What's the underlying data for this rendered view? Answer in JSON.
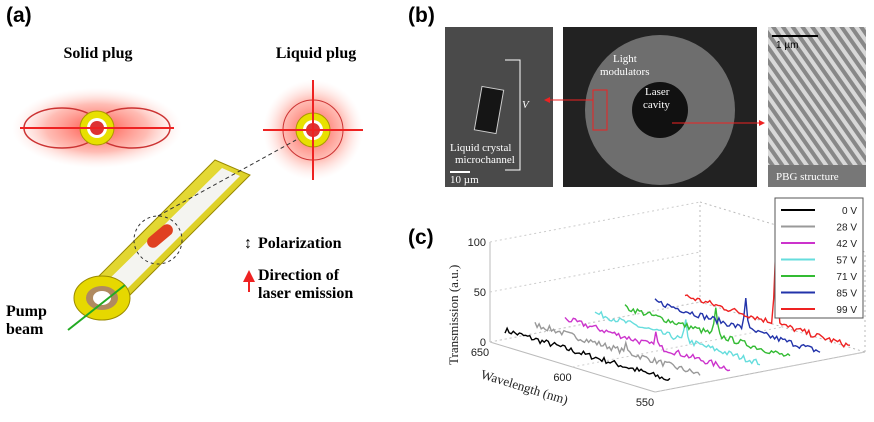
{
  "panel_a": {
    "label": "(a)",
    "solid_plug": "Solid plug",
    "liquid_plug": "Liquid plug",
    "polarization": "Polarization",
    "emission": [
      "Direction of",
      "laser emission"
    ],
    "pump": [
      "Pump",
      "beam"
    ]
  },
  "panel_b": {
    "label": "(b)",
    "light_modulators": [
      "Light",
      "modulators"
    ],
    "laser_cavity": [
      "Laser",
      "cavity"
    ],
    "voltage": "V",
    "microchannel": [
      "Liquid crystal",
      "microchannel"
    ],
    "scale_left": "10 µm",
    "scale_right": "1 µm",
    "pbg": "PBG  structure"
  },
  "panel_c": {
    "label": "(c)",
    "type": "waterfall",
    "z_label": "Transmission (a.u.)",
    "x_label": "Wavelength (nm)",
    "zlim": [
      0,
      100
    ],
    "zticks": [
      0,
      50,
      100
    ],
    "xlim": [
      650,
      550
    ],
    "xticks": [
      650,
      600,
      550
    ],
    "series": [
      {
        "name": "0 V",
        "color": "#000000"
      },
      {
        "name": "28 V",
        "color": "#999999"
      },
      {
        "name": "42 V",
        "color": "#cc33cc"
      },
      {
        "name": "57 V",
        "color": "#66dddd"
      },
      {
        "name": "71 V",
        "color": "#33bb33"
      },
      {
        "name": "85 V",
        "color": "#2233aa"
      },
      {
        "name": "99 V",
        "color": "#ee2222"
      }
    ]
  }
}
